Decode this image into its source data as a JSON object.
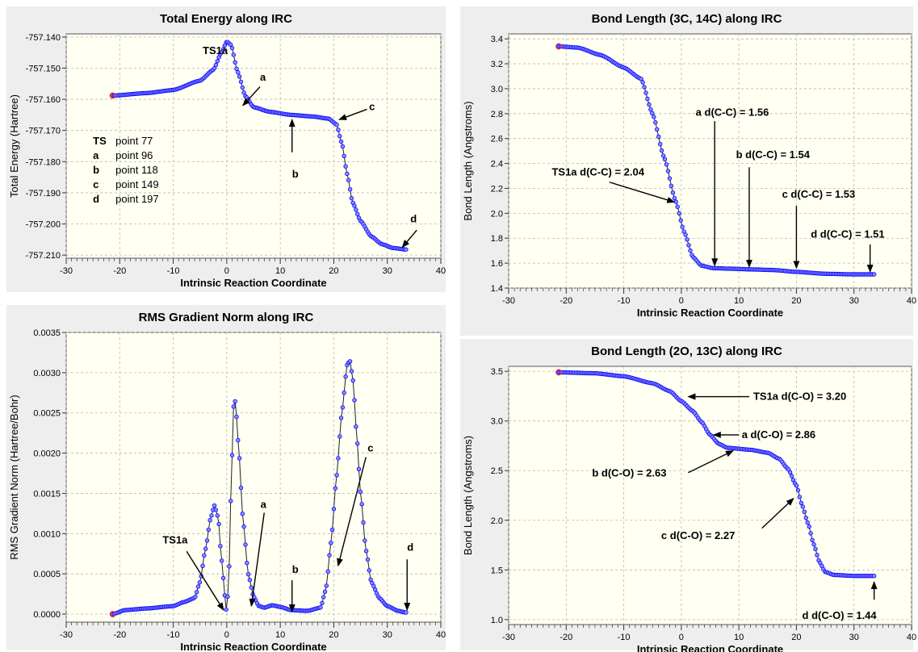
{
  "colors": {
    "panel_bg": "#eeeeee",
    "plot_bg": "#fffff2",
    "grid": "#b8b8b8",
    "series": "#0000ff",
    "marker_fill": "#8c8cff",
    "line": "#000000",
    "endpoint": "#ff3333"
  },
  "chart_data": [
    {
      "id": "energy",
      "type": "line",
      "title": "Total Energy along IRC",
      "xlabel": "Intrinsic Reaction Coordinate",
      "ylabel": "Total Energy (Hartree)",
      "xlim": [
        -30,
        40
      ],
      "ylim": [
        -757.211,
        -757.139
      ],
      "xticks": [
        -30,
        -20,
        -10,
        0,
        10,
        20,
        30,
        40
      ],
      "xtick_labels": [
        "-30",
        "-20",
        "-10",
        "0",
        "10",
        "20",
        "30",
        "40"
      ],
      "yticks": [
        -757.14,
        -757.15,
        -757.16,
        -757.17,
        -757.18,
        -757.19,
        -757.2,
        -757.21
      ],
      "ytick_labels": [
        "-757.140",
        "-757.150",
        "-757.160",
        "-757.170",
        "-757.180",
        "-757.190",
        "-757.200",
        "-757.210"
      ],
      "x_range": [
        -21.3,
        33.5
      ],
      "key_points": [
        [
          -21.3,
          -757.1588
        ],
        [
          -15,
          -757.158
        ],
        [
          -10,
          -757.157
        ],
        [
          -5,
          -757.154
        ],
        [
          -2.5,
          -757.1505
        ],
        [
          -1,
          -757.145
        ],
        [
          0,
          -757.1415
        ],
        [
          0.8,
          -757.1425
        ],
        [
          2,
          -757.151
        ],
        [
          3.5,
          -757.159
        ],
        [
          5,
          -757.1625
        ],
        [
          8,
          -757.164
        ],
        [
          12,
          -757.165
        ],
        [
          16,
          -757.1655
        ],
        [
          19,
          -757.1662
        ],
        [
          20.5,
          -757.168
        ],
        [
          21.5,
          -757.174
        ],
        [
          22.5,
          -757.184
        ],
        [
          23.5,
          -757.193
        ],
        [
          25,
          -757.199
        ],
        [
          27,
          -757.204
        ],
        [
          29,
          -757.2065
        ],
        [
          31,
          -757.2077
        ],
        [
          33.5,
          -757.2082
        ]
      ],
      "annotations": [
        {
          "text": "TS1a",
          "x": -4.5,
          "y": -757.1445,
          "bold": true
        },
        {
          "text": "a",
          "x": 6.2,
          "y": -757.153,
          "bold": true,
          "arrow_from": [
            6.2,
            -757.156
          ],
          "arrow_to": [
            3,
            -757.162
          ]
        },
        {
          "text": "c",
          "x": 26.6,
          "y": -757.1625,
          "bold": true,
          "arrow_from": [
            26.2,
            -757.1632
          ],
          "arrow_to": [
            21,
            -757.1665
          ]
        },
        {
          "text": "b",
          "x": 12.2,
          "y": -757.184,
          "bold": true,
          "arrow_from": [
            12.2,
            -757.177
          ],
          "arrow_to": [
            12.2,
            -757.1665
          ]
        },
        {
          "text": "d",
          "x": 34.3,
          "y": -757.1985,
          "bold": true,
          "arrow_from": [
            35.5,
            -757.202
          ],
          "arrow_to": [
            32.8,
            -757.2075
          ]
        }
      ],
      "legend": [
        {
          "label": "TS",
          "value": "point 77"
        },
        {
          "label": "a",
          "value": "point 96"
        },
        {
          "label": "b",
          "value": "point 118"
        },
        {
          "label": "c",
          "value": "point 149"
        },
        {
          "label": "d",
          "value": "point 197"
        }
      ]
    },
    {
      "id": "bond_cc",
      "type": "line",
      "title": "Bond Length (3C, 14C) along IRC",
      "xlabel": "Intrinsic Reaction Coordinate",
      "ylabel": "Bond Length (Angstroms)",
      "xlim": [
        -30,
        40
      ],
      "ylim": [
        1.4,
        3.44
      ],
      "xticks": [
        -30,
        -20,
        -10,
        0,
        10,
        20,
        30,
        40
      ],
      "xtick_labels": [
        "-30",
        "-20",
        "-10",
        "0",
        "10",
        "20",
        "30",
        "40"
      ],
      "yticks": [
        1.4,
        1.6,
        1.8,
        2.0,
        2.2,
        2.4,
        2.6,
        2.8,
        3.0,
        3.2,
        3.4
      ],
      "ytick_labels": [
        "1.4",
        "1.6",
        "1.8",
        "2.0",
        "2.2",
        "2.4",
        "2.6",
        "2.8",
        "3.0",
        "3.2",
        "3.4"
      ],
      "x_range": [
        -21.3,
        33.5
      ],
      "key_points": [
        [
          -21.3,
          3.34
        ],
        [
          -18,
          3.33
        ],
        [
          -14,
          3.27
        ],
        [
          -10,
          3.17
        ],
        [
          -7,
          3.08
        ],
        [
          -5,
          2.8
        ],
        [
          -3,
          2.45
        ],
        [
          -1,
          2.1
        ],
        [
          0.5,
          1.85
        ],
        [
          2,
          1.65
        ],
        [
          3.5,
          1.58
        ],
        [
          5.5,
          1.56
        ],
        [
          9,
          1.555
        ],
        [
          12,
          1.55
        ],
        [
          16,
          1.545
        ],
        [
          20,
          1.53
        ],
        [
          25,
          1.515
        ],
        [
          30,
          1.51
        ],
        [
          33.5,
          1.51
        ]
      ],
      "annotations": [
        {
          "text": "TS1a d(C-C) = 2.04",
          "x": -22.5,
          "y": 2.33,
          "bold": true,
          "arrow_from": [
            -12.5,
            2.25
          ],
          "arrow_to": [
            -1.2,
            2.09
          ]
        },
        {
          "text": "a d(C-C) = 1.56",
          "x": 2.5,
          "y": 2.81,
          "bold": true,
          "arrow_from": [
            5.8,
            2.74
          ],
          "arrow_to": [
            5.8,
            1.58
          ]
        },
        {
          "text": "b d(C-C) = 1.54",
          "x": 9.5,
          "y": 2.47,
          "bold": true,
          "arrow_from": [
            11.8,
            2.37
          ],
          "arrow_to": [
            11.8,
            1.57
          ]
        },
        {
          "text": "c d(C-C) = 1.53",
          "x": 17.5,
          "y": 2.15,
          "bold": true,
          "arrow_from": [
            20,
            2.06
          ],
          "arrow_to": [
            20,
            1.56
          ]
        },
        {
          "text": "d d(C-C) = 1.51",
          "x": 22.5,
          "y": 1.83,
          "bold": true,
          "arrow_from": [
            32.8,
            1.75
          ],
          "arrow_to": [
            32.8,
            1.53
          ]
        }
      ]
    },
    {
      "id": "rms",
      "type": "line",
      "title": "RMS Gradient Norm along IRC",
      "xlabel": "Intrinsic Reaction Coordinate",
      "ylabel": "RMS Gradient Norm (Hartree/Bohr)",
      "xlim": [
        -30,
        40
      ],
      "ylim": [
        -0.0001,
        0.0035
      ],
      "xticks": [
        -30,
        -20,
        -10,
        0,
        10,
        20,
        30,
        40
      ],
      "xtick_labels": [
        "-30",
        "-20",
        "-10",
        "0",
        "10",
        "20",
        "30",
        "40"
      ],
      "yticks": [
        0.0,
        0.0005,
        0.001,
        0.0015,
        0.002,
        0.0025,
        0.003,
        0.0035
      ],
      "ytick_labels": [
        "0.0000",
        "0.0005",
        "0.0010",
        "0.0015",
        "0.0020",
        "0.0025",
        "0.0030",
        "0.0035"
      ],
      "x_range": [
        -21.3,
        33.5
      ],
      "key_points": [
        [
          -21.3,
          0.0
        ],
        [
          -19,
          5e-05
        ],
        [
          -15,
          7e-05
        ],
        [
          -10,
          0.0001
        ],
        [
          -8,
          0.00015
        ],
        [
          -6,
          0.0002
        ],
        [
          -5,
          0.0004
        ],
        [
          -4,
          0.0008
        ],
        [
          -3,
          0.0012
        ],
        [
          -2.3,
          0.00135
        ],
        [
          -1.6,
          0.0012
        ],
        [
          -1,
          0.0007
        ],
        [
          -0.3,
          0.0002
        ],
        [
          0,
          0.0
        ],
        [
          0.4,
          0.0005
        ],
        [
          0.9,
          0.0018
        ],
        [
          1.3,
          0.0026
        ],
        [
          1.6,
          0.00265
        ],
        [
          2.2,
          0.0021
        ],
        [
          3,
          0.0012
        ],
        [
          4,
          0.0005
        ],
        [
          5,
          0.00022
        ],
        [
          6,
          0.0001
        ],
        [
          7,
          8e-05
        ],
        [
          8.5,
          0.00011
        ],
        [
          10,
          9e-05
        ],
        [
          12,
          5e-05
        ],
        [
          15,
          4e-05
        ],
        [
          17.5,
          8e-05
        ],
        [
          18.5,
          0.0003
        ],
        [
          19.5,
          0.0009
        ],
        [
          20.5,
          0.0017
        ],
        [
          21.5,
          0.0025
        ],
        [
          22.5,
          0.0031
        ],
        [
          23,
          0.00315
        ],
        [
          23.6,
          0.0029
        ],
        [
          24.3,
          0.0022
        ],
        [
          25,
          0.0015
        ],
        [
          26,
          0.0008
        ],
        [
          27,
          0.0004
        ],
        [
          28.5,
          0.0002
        ],
        [
          30,
          0.0001
        ],
        [
          32,
          4e-05
        ],
        [
          33.5,
          2e-05
        ]
      ],
      "annotations": [
        {
          "text": "TS1a",
          "x": -12,
          "y": 0.00092,
          "bold": true,
          "arrow_from": [
            -7.5,
            0.00078
          ],
          "arrow_to": [
            -0.6,
            5e-05
          ]
        },
        {
          "text": "a",
          "x": 6.3,
          "y": 0.00136,
          "bold": true,
          "arrow_from": [
            7,
            0.00126
          ],
          "arrow_to": [
            4.6,
            0.0001
          ]
        },
        {
          "text": "b",
          "x": 12.2,
          "y": 0.00055,
          "bold": true,
          "arrow_from": [
            12.2,
            0.00042
          ],
          "arrow_to": [
            12.2,
            3e-05
          ]
        },
        {
          "text": "c",
          "x": 26.3,
          "y": 0.00206,
          "bold": true,
          "arrow_from": [
            26,
            0.00195
          ],
          "arrow_to": [
            20.8,
            0.0006
          ]
        },
        {
          "text": "d",
          "x": 33.7,
          "y": 0.00083,
          "bold": true,
          "arrow_from": [
            33.7,
            0.00068
          ],
          "arrow_to": [
            33.7,
            5e-05
          ]
        }
      ]
    },
    {
      "id": "bond_co",
      "type": "line",
      "title": "Bond Length (2O, 13C) along IRC",
      "xlabel": "Intrinsic Reaction Coordinate",
      "ylabel": "Bond Length (Angstroms)",
      "xlim": [
        -30,
        40
      ],
      "ylim": [
        0.95,
        3.55
      ],
      "xticks": [
        -30,
        -20,
        -10,
        0,
        10,
        20,
        30,
        40
      ],
      "xtick_labels": [
        "-30",
        "-20",
        "-10",
        "0",
        "10",
        "20",
        "30",
        "40"
      ],
      "yticks": [
        1.0,
        1.5,
        2.0,
        2.5,
        3.0,
        3.5
      ],
      "ytick_labels": [
        "1.0",
        "1.5",
        "2.0",
        "2.5",
        "3.0",
        "3.5"
      ],
      "x_range": [
        -21.3,
        33.5
      ],
      "key_points": [
        [
          -21.3,
          3.49
        ],
        [
          -15,
          3.48
        ],
        [
          -10,
          3.45
        ],
        [
          -5,
          3.38
        ],
        [
          -2,
          3.3
        ],
        [
          0,
          3.2
        ],
        [
          2,
          3.1
        ],
        [
          3.5,
          2.99
        ],
        [
          5,
          2.86
        ],
        [
          6.5,
          2.77
        ],
        [
          8,
          2.73
        ],
        [
          12,
          2.71
        ],
        [
          15,
          2.68
        ],
        [
          17,
          2.62
        ],
        [
          18.5,
          2.52
        ],
        [
          20,
          2.35
        ],
        [
          21,
          2.15
        ],
        [
          22,
          1.97
        ],
        [
          23,
          1.76
        ],
        [
          24,
          1.58
        ],
        [
          25,
          1.48
        ],
        [
          26.5,
          1.45
        ],
        [
          30,
          1.44
        ],
        [
          33.5,
          1.44
        ]
      ],
      "annotations": [
        {
          "text": "TS1a d(C-O) = 3.20",
          "x": 12.5,
          "y": 3.245,
          "bold": true,
          "arrow_from": [
            11.8,
            3.245
          ],
          "arrow_to": [
            1.2,
            3.245
          ]
        },
        {
          "text": "a d(C-O) = 2.86",
          "x": 10.5,
          "y": 2.86,
          "bold": true,
          "arrow_from": [
            10,
            2.86
          ],
          "arrow_to": [
            5.6,
            2.86
          ]
        },
        {
          "text": "b d(C-O) = 2.63",
          "x": -15.5,
          "y": 2.475,
          "bold": true,
          "arrow_from": [
            1.2,
            2.48
          ],
          "arrow_to": [
            9,
            2.7
          ]
        },
        {
          "text": "c d(C-O) = 2.27",
          "x": -3.5,
          "y": 1.845,
          "bold": true,
          "arrow_from": [
            14,
            1.92
          ],
          "arrow_to": [
            19.5,
            2.22
          ]
        },
        {
          "text": "d d(C-O) = 1.44",
          "x": 21,
          "y": 1.04,
          "bold": true,
          "arrow_from": [
            33.5,
            1.2
          ],
          "arrow_to": [
            33.5,
            1.38
          ]
        }
      ]
    }
  ]
}
